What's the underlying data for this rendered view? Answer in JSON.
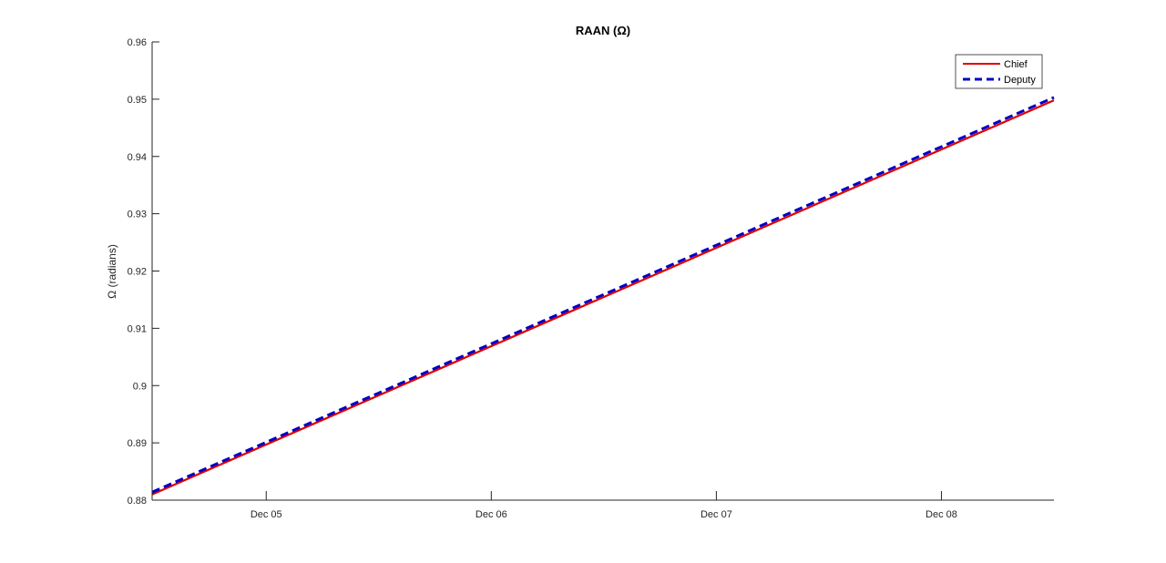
{
  "chart_data": {
    "type": "line",
    "title": "RAAN (Ω)",
    "xlabel": "",
    "ylabel": "Ω (radians)",
    "xlim": [
      "2023-12-04 11:50",
      "2023-12-08 12:00"
    ],
    "ylim": [
      0.88,
      0.96
    ],
    "x_ticks": [
      {
        "value": "2023-12-05 00:00",
        "label": "Dec 05"
      },
      {
        "value": "2023-12-06 00:00",
        "label": "Dec 06"
      },
      {
        "value": "2023-12-07 00:00",
        "label": "Dec 07"
      },
      {
        "value": "2023-12-08 00:00",
        "label": "Dec 08"
      }
    ],
    "y_ticks": [
      {
        "value": 0.88,
        "label": "0.88"
      },
      {
        "value": 0.89,
        "label": "0.89"
      },
      {
        "value": 0.9,
        "label": "0.9"
      },
      {
        "value": 0.91,
        "label": "0.91"
      },
      {
        "value": 0.92,
        "label": "0.92"
      },
      {
        "value": 0.93,
        "label": "0.93"
      },
      {
        "value": 0.94,
        "label": "0.94"
      },
      {
        "value": 0.95,
        "label": "0.95"
      },
      {
        "value": 0.96,
        "label": "0.96"
      }
    ],
    "grid": false,
    "legend_position": "top-right",
    "series": [
      {
        "name": "Chief",
        "color": "#e00000",
        "style": "solid",
        "x": [
          "2023-12-04 11:50",
          "2023-12-08 12:00"
        ],
        "y": [
          0.881,
          0.9498
        ]
      },
      {
        "name": "Deputy",
        "color": "#0000c8",
        "style": "dashed",
        "x": [
          "2023-12-04 11:50",
          "2023-12-08 12:00"
        ],
        "y": [
          0.8814,
          0.9503
        ]
      }
    ]
  }
}
